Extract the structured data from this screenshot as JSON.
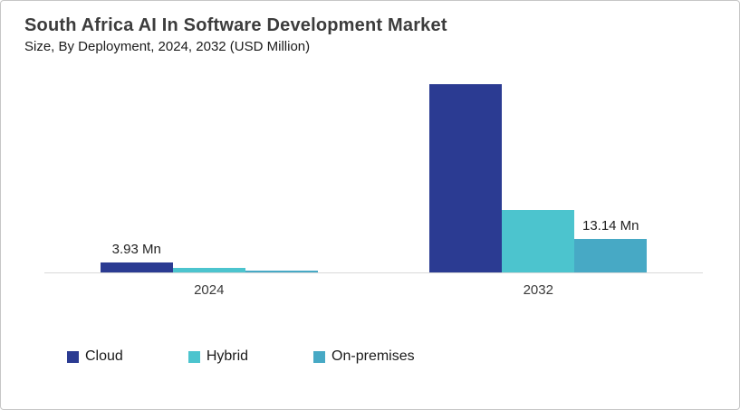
{
  "chart_data": {
    "type": "bar",
    "title": "South Africa AI In Software Development Market",
    "subtitle": "Size, By Deployment, 2024, 2032 (USD Million)",
    "unit": "USD Million",
    "categories": [
      "2024",
      "2032"
    ],
    "series": [
      {
        "name": "Cloud",
        "color": "#2B3B92",
        "values": [
          3.93,
          73.9
        ],
        "labels": [
          "3.93 Mn",
          ""
        ]
      },
      {
        "name": "Hybrid",
        "color": "#4CC4CE",
        "values": [
          1.6,
          24.5
        ],
        "labels": [
          "",
          ""
        ]
      },
      {
        "name": "On-premises",
        "color": "#47A9C5",
        "values": [
          0.7,
          13.14
        ],
        "labels": [
          "",
          "13.14 Mn"
        ]
      }
    ],
    "ylim": [
      0,
      78
    ],
    "grid": false,
    "legend_position": "bottom",
    "axis_line_color": "#d9d9d9"
  }
}
